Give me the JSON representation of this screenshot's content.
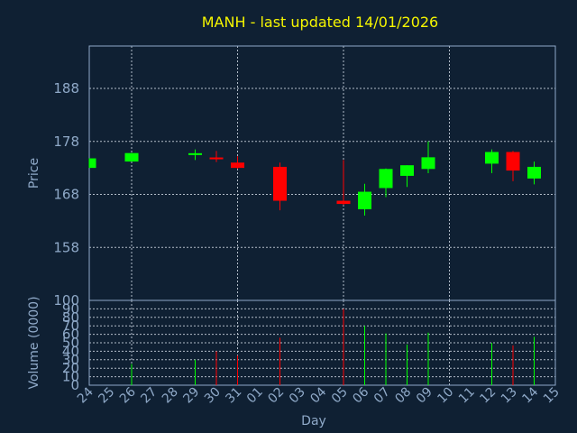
{
  "chart_data": {
    "type": "candlestick",
    "title": "MANH - last updated 14/01/2026",
    "xlabel": "Day",
    "price_panel": {
      "ylabel": "Price",
      "ylim": [
        148,
        196
      ],
      "yticks": [
        158,
        168,
        178,
        188
      ],
      "grid": true
    },
    "volume_panel": {
      "ylabel": "Volume (0000)",
      "ylim": [
        0,
        100
      ],
      "yticks": [
        0,
        10,
        20,
        30,
        40,
        50,
        60,
        70,
        80,
        90,
        100
      ],
      "grid": true
    },
    "colors": {
      "up": "#00ff00",
      "down": "#ff0000",
      "title": "#f5f500",
      "axis": "#8fa9c8",
      "background": "#0f2033"
    },
    "x_labels": [
      "24",
      "25",
      "26",
      "27",
      "28",
      "29",
      "30",
      "31",
      "01",
      "02",
      "03",
      "04",
      "05",
      "06",
      "07",
      "08",
      "09",
      "10",
      "11",
      "12",
      "13",
      "14",
      "15"
    ],
    "candles": [
      {
        "day": "24",
        "open": 173.0,
        "high": 174.8,
        "low": 173.0,
        "close": 174.8,
        "volume": 0
      },
      {
        "day": "26",
        "open": 174.2,
        "high": 175.8,
        "low": 174.2,
        "close": 175.8,
        "volume": 25
      },
      {
        "day": "29",
        "open": 175.5,
        "high": 176.5,
        "low": 174.5,
        "close": 175.6,
        "volume": 30
      },
      {
        "day": "30",
        "open": 174.8,
        "high": 176.2,
        "low": 174.1,
        "close": 174.5,
        "volume": 40
      },
      {
        "day": "31",
        "open": 174.0,
        "high": 175.2,
        "low": 172.8,
        "close": 173.0,
        "volume": 35
      },
      {
        "day": "02",
        "open": 173.2,
        "high": 174.0,
        "low": 165.0,
        "close": 166.8,
        "volume": 56
      },
      {
        "day": "05",
        "open": 166.8,
        "high": 174.5,
        "low": 166.0,
        "close": 166.2,
        "volume": 90
      },
      {
        "day": "06",
        "open": 165.2,
        "high": 170.0,
        "low": 164.0,
        "close": 168.5,
        "volume": 70
      },
      {
        "day": "07",
        "open": 169.2,
        "high": 172.9,
        "low": 167.5,
        "close": 172.8,
        "volume": 61
      },
      {
        "day": "08",
        "open": 171.5,
        "high": 173.5,
        "low": 169.4,
        "close": 173.5,
        "volume": 48
      },
      {
        "day": "09",
        "open": 172.8,
        "high": 178.0,
        "low": 172.0,
        "close": 175.0,
        "volume": 62
      },
      {
        "day": "12",
        "open": 173.8,
        "high": 176.5,
        "low": 172.0,
        "close": 176.0,
        "volume": 50
      },
      {
        "day": "13",
        "open": 176.0,
        "high": 176.2,
        "low": 170.5,
        "close": 172.5,
        "volume": 47
      },
      {
        "day": "14",
        "open": 171.0,
        "high": 174.2,
        "low": 169.9,
        "close": 173.2,
        "volume": 57
      }
    ]
  }
}
